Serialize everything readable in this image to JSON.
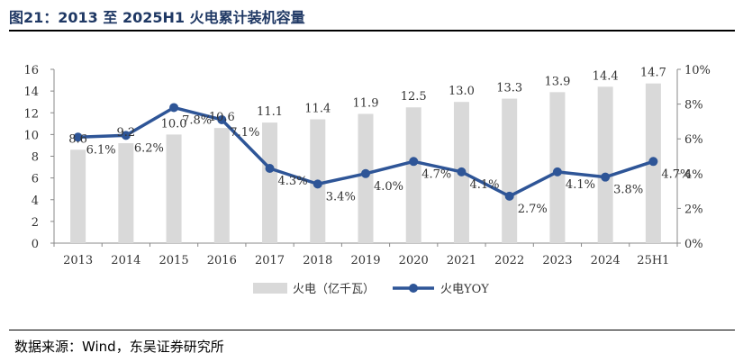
{
  "figure_title": "图21：2013 至 2025H1 火电累计装机容量",
  "source_note": "数据来源：Wind，东吴证券研究所",
  "colors": {
    "bar": "#d9d9d9",
    "line": "#2e5597",
    "title": "#1f3864"
  },
  "chart_data": {
    "type": "bar+line",
    "categories": [
      "2013",
      "2014",
      "2015",
      "2016",
      "2017",
      "2018",
      "2019",
      "2020",
      "2021",
      "2022",
      "2023",
      "2024",
      "25H1"
    ],
    "series": [
      {
        "name": "火电（亿千瓦）",
        "type": "bar",
        "axis": "left",
        "values": [
          8.6,
          9.2,
          10.0,
          10.6,
          11.1,
          11.4,
          11.9,
          12.5,
          13.0,
          13.3,
          13.9,
          14.4,
          14.7
        ],
        "labels": [
          "8.6",
          "9.2",
          "10.0",
          "10.6",
          "11.1",
          "11.4",
          "11.9",
          "12.5",
          "13.0",
          "13.3",
          "13.9",
          "14.4",
          "14.7"
        ]
      },
      {
        "name": "火电YOY",
        "type": "line",
        "axis": "right",
        "values": [
          6.1,
          6.2,
          7.8,
          7.1,
          4.3,
          3.4,
          4.0,
          4.7,
          4.1,
          2.7,
          4.1,
          3.8,
          4.7
        ],
        "labels": [
          "6.1%",
          "6.2%",
          "7.8%",
          "7.1%",
          "4.3%",
          "3.4%",
          "4.0%",
          "4.7%",
          "4.1%",
          "2.7%",
          "4.1%",
          "3.8%",
          "4.7%"
        ]
      }
    ],
    "y_left": {
      "min": 0,
      "max": 16,
      "ticks": [
        "0",
        "2",
        "4",
        "6",
        "8",
        "10",
        "12",
        "14",
        "16"
      ]
    },
    "y_right": {
      "min": 0,
      "max": 10,
      "ticks": [
        "0%",
        "2%",
        "4%",
        "6%",
        "8%",
        "10%"
      ]
    },
    "grid": false,
    "legend_position": "bottom"
  }
}
